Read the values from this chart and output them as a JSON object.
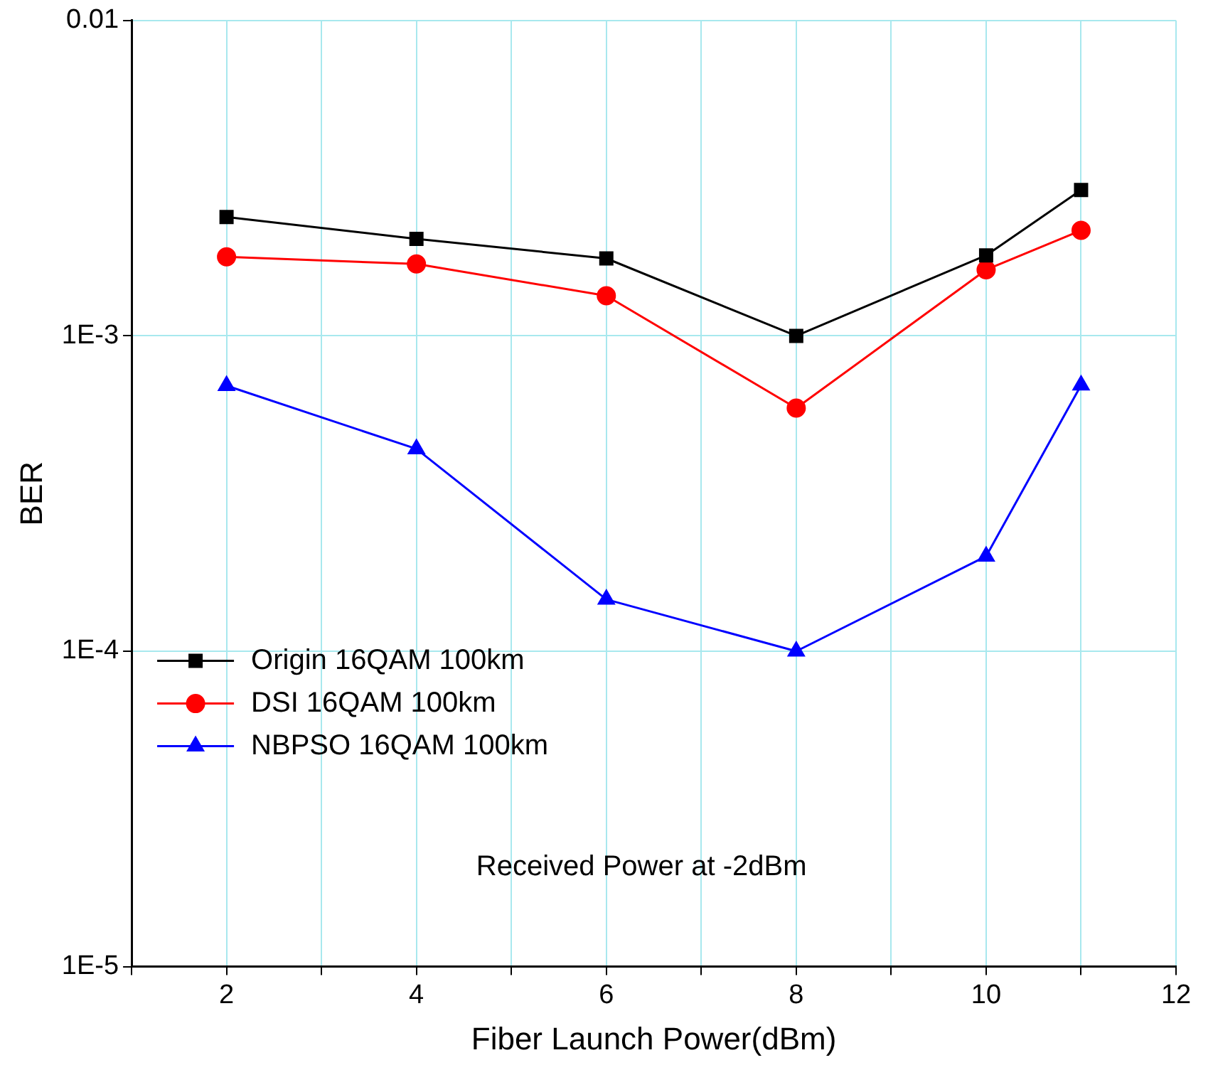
{
  "chart_data": {
    "type": "line",
    "xlabel": "Fiber Launch Power(dBm)",
    "ylabel": "BER",
    "x": [
      2,
      4,
      6,
      8,
      10,
      11
    ],
    "series": [
      {
        "name": "Origin 16QAM 100km",
        "color": "#000000",
        "marker": "square",
        "values": [
          0.00238,
          0.00203,
          0.00176,
          0.001,
          0.0018,
          0.0029
        ]
      },
      {
        "name": "DSI 16QAM 100km",
        "color": "#ff0000",
        "marker": "circle",
        "values": [
          0.00178,
          0.00169,
          0.00134,
          0.00059,
          0.00162,
          0.00216
        ]
      },
      {
        "name": "NBPSO 16QAM 100km",
        "color": "#0000ff",
        "marker": "triangle",
        "values": [
          0.000695,
          0.000438,
          0.000146,
          0.0001,
          0.0002,
          0.000698
        ]
      }
    ],
    "xlim": [
      1,
      12
    ],
    "xticks": [
      {
        "value": 1,
        "label": null
      },
      2,
      {
        "value": 3,
        "label": null
      },
      4,
      {
        "value": 5,
        "label": null
      },
      6,
      {
        "value": 7,
        "label": null
      },
      8,
      {
        "value": 9,
        "label": null
      },
      10,
      {
        "value": 11,
        "label": null
      },
      12
    ],
    "ylim": [
      1e-05,
      0.01
    ],
    "yticks": [
      {
        "value": 1e-05,
        "label": "1E-5"
      },
      {
        "value": 0.0001,
        "label": "1E-4"
      },
      {
        "value": 0.001,
        "label": "1E-3"
      },
      {
        "value": 0.01,
        "label": "0.01"
      }
    ],
    "log": "y",
    "grid": true,
    "legend": "bottom left",
    "line_style": "solid",
    "annotations": [
      "Received Power at -2dBm"
    ]
  }
}
